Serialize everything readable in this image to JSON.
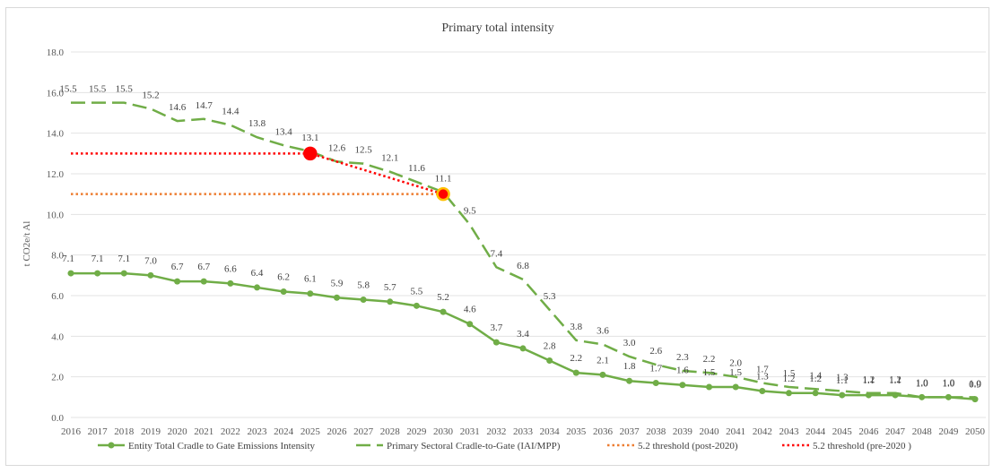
{
  "chart_data": {
    "type": "line",
    "title": "Primary total intensity",
    "xlabel": "",
    "ylabel": "t CO2e/t Al",
    "ylim": [
      0,
      18
    ],
    "yticks": [
      "0.0",
      "2.0",
      "4.0",
      "6.0",
      "8.0",
      "10.0",
      "12.0",
      "14.0",
      "16.0",
      "18.0"
    ],
    "grid": true,
    "legend_position": "bottom",
    "categories": [
      "2016",
      "2017",
      "2018",
      "2019",
      "2020",
      "2021",
      "2022",
      "2023",
      "2024",
      "2025",
      "2026",
      "2027",
      "2028",
      "2029",
      "2030",
      "2031",
      "2032",
      "2033",
      "2034",
      "2035",
      "2036",
      "2037",
      "2038",
      "2039",
      "2040",
      "2041",
      "2042",
      "2043",
      "2044",
      "2045",
      "2046",
      "2047",
      "2048",
      "2049",
      "2050"
    ],
    "series": [
      {
        "name": "Entity Total Cradle to Gate Emissions Intensity",
        "style": "solid-markers",
        "color": "#70ad47",
        "values": [
          7.1,
          7.1,
          7.1,
          7.0,
          6.7,
          6.7,
          6.6,
          6.4,
          6.2,
          6.1,
          5.9,
          5.8,
          5.7,
          5.5,
          5.2,
          4.6,
          3.7,
          3.4,
          2.8,
          2.2,
          2.1,
          1.8,
          1.7,
          1.6,
          1.5,
          1.5,
          1.3,
          1.2,
          1.2,
          1.1,
          1.1,
          1.1,
          1.0,
          1.0,
          0.9
        ],
        "labels": [
          "7.1",
          "7.1",
          "7.1",
          "7.0",
          "6.7",
          "6.7",
          "6.6",
          "6.4",
          "6.2",
          "6.1",
          "5.9",
          "5.8",
          "5.7",
          "5.5",
          "5.2",
          "4.6",
          "3.7",
          "3.4",
          "2.8",
          "2.2",
          "2.1",
          "1.8",
          "1.7",
          "1.6",
          "1.5",
          "1.5",
          "1.3",
          "1.2",
          "1.2",
          "1.1",
          "1.1",
          "1.1",
          "1.0",
          "1.0",
          "0.9"
        ]
      },
      {
        "name": "Primary Sectoral Cradle-to-Gate (IAI/MPP)",
        "style": "dashed",
        "color": "#70ad47",
        "values": [
          15.5,
          15.5,
          15.5,
          15.2,
          14.6,
          14.7,
          14.4,
          13.8,
          13.4,
          13.1,
          12.6,
          12.5,
          12.1,
          11.6,
          11.1,
          9.5,
          7.4,
          6.8,
          5.3,
          3.8,
          3.6,
          3.0,
          2.6,
          2.3,
          2.2,
          2.0,
          1.7,
          1.5,
          1.4,
          1.3,
          1.2,
          1.2,
          1.0,
          1.0,
          1.0
        ],
        "labels": [
          "15.5",
          "15.5",
          "15.5",
          "15.2",
          "14.6",
          "14.7",
          "14.4",
          "13.8",
          "13.4",
          "13.1",
          "12.6",
          "12.5",
          "12.1",
          "11.6",
          "11.1",
          "9.5",
          "7.4",
          "6.8",
          "5.3",
          "3.8",
          "3.6",
          "3.0",
          "2.6",
          "2.3",
          "2.2",
          "2.0",
          "1.7",
          "1.5",
          "1.4",
          "1.3",
          "1.2",
          "1.2",
          "1.0",
          "1.0",
          "1.0"
        ]
      },
      {
        "name": "5.2 threshold (post-2020)",
        "style": "dotted",
        "color": "#ed7d31",
        "x": [
          "2016",
          "2030"
        ],
        "values": [
          11.0,
          11.0
        ],
        "end_marker": {
          "x": "2030",
          "y": 11.0,
          "fill": "#ff0000",
          "stroke": "#ffc000"
        }
      },
      {
        "name": "5.2 threshold (pre-2020 )",
        "style": "dotted",
        "color": "#ff0000",
        "x": [
          "2016",
          "2025",
          "2030"
        ],
        "values": [
          13.0,
          13.0,
          11.0
        ],
        "end_marker": {
          "x": "2025",
          "y": 13.0,
          "fill": "#ff0000",
          "stroke": "#ff0000"
        }
      }
    ]
  }
}
